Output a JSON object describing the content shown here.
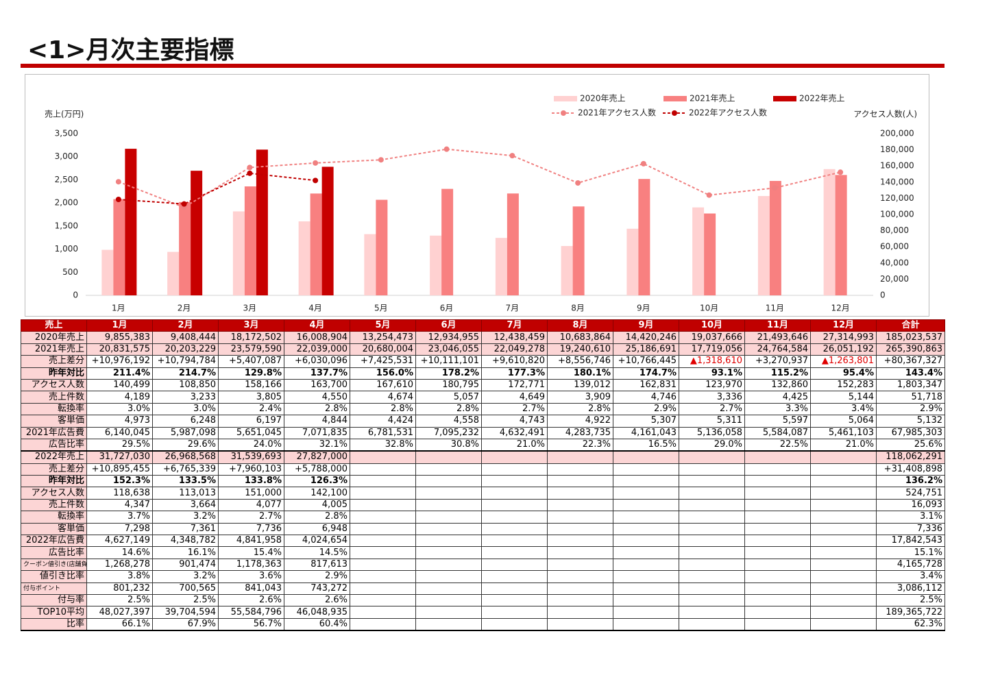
{
  "header": {
    "title": "<1>月次主要指標"
  },
  "chart_data": {
    "type": "bar",
    "y_label": "売上(万円)",
    "y2_label": "アクセス人数(人)",
    "categories": [
      "1月",
      "2月",
      "3月",
      "4月",
      "5月",
      "6月",
      "7月",
      "8月",
      "9月",
      "10月",
      "11月",
      "12月"
    ],
    "series": [
      {
        "name": "2020年売上",
        "color": "#ffd1d1",
        "values": [
          985.5,
          940.8,
          1817.3,
          1600.9,
          1325.4,
          1293.5,
          1243.8,
          1068.4,
          1442.0,
          1903.8,
          2149.4,
          2731.5
        ]
      },
      {
        "name": "2021年売上",
        "color": "#f88080",
        "values": [
          2083.2,
          2020.3,
          2358.0,
          2203.9,
          2068.0,
          2304.6,
          2204.9,
          1924.1,
          2518.7,
          1771.9,
          2476.5,
          2605.1
        ]
      },
      {
        "name": "2022年売上",
        "color": "#c80000",
        "values": [
          3172.7,
          2696.9,
          3154.0,
          2782.7,
          null,
          null,
          null,
          null,
          null,
          null,
          null,
          null
        ]
      },
      {
        "name": "2021年アクセス人数",
        "type": "line",
        "axis": "y2",
        "color": "#f08080",
        "values": [
          140499,
          108850,
          158166,
          163700,
          167610,
          180795,
          172771,
          139012,
          162831,
          123970,
          132860,
          152283
        ]
      },
      {
        "name": "2022年アクセス人数",
        "type": "line",
        "axis": "y2",
        "color": "#c00000",
        "values": [
          118638,
          113013,
          151000,
          142100,
          null,
          null,
          null,
          null,
          null,
          null,
          null,
          null
        ]
      }
    ],
    "ylim": [
      0,
      3500
    ],
    "yticks": [
      0,
      500,
      {
        "value": 1000,
        "label": "1,000"
      },
      {
        "value": 1500,
        "label": "1,500"
      },
      {
        "value": 2000,
        "label": "2,000"
      },
      {
        "value": 2500,
        "label": "2,500"
      },
      {
        "value": 3000,
        "label": "3,000"
      },
      {
        "value": 3500,
        "label": "3,500"
      }
    ],
    "y2lim": [
      0,
      200000
    ],
    "y2ticks": [
      0,
      {
        "value": 20000,
        "label": "20,000"
      },
      {
        "value": 40000,
        "label": "40,000"
      },
      {
        "value": 60000,
        "label": "60,000"
      },
      {
        "value": 80000,
        "label": "80,000"
      },
      {
        "value": 100000,
        "label": "100,000"
      },
      {
        "value": 120000,
        "label": "120,000"
      },
      {
        "value": 140000,
        "label": "140,000"
      },
      {
        "value": 160000,
        "label": "160,000"
      },
      {
        "value": 180000,
        "label": "180,000"
      },
      {
        "value": 200000,
        "label": "200,000"
      }
    ],
    "grid": false
  },
  "table": {
    "header": [
      "売上",
      "1月",
      "2月",
      "3月",
      "4月",
      "5月",
      "6月",
      "7月",
      "8月",
      "9月",
      "10月",
      "11月",
      "12月",
      "合計"
    ],
    "rows": [
      {
        "label": "2020年売上",
        "cells": [
          "9,855,383",
          "9,408,444",
          "18,172,502",
          "16,008,904",
          "13,254,473",
          "12,934,955",
          "12,438,459",
          "10,683,864",
          "14,420,246",
          "19,037,666",
          "21,493,646",
          "27,314,993",
          "185,023,537"
        ]
      },
      {
        "label": "2021年売上",
        "cells": [
          "20,831,575",
          "20,203,229",
          "23,579,590",
          "22,039,000",
          "20,680,004",
          "23,046,055",
          "22,049,278",
          "19,240,610",
          "25,186,691",
          "17,719,056",
          "24,764,584",
          "26,051,192",
          "265,390,863"
        ]
      },
      {
        "label": "売上差分",
        "cells": [
          "+10,976,192",
          "+10,794,784",
          "+5,407,087",
          "+6,030,096",
          "+7,425,531",
          "+10,111,101",
          "+9,610,820",
          "+8,556,746",
          "+10,766,445",
          "▲1,318,610",
          "+3,270,937",
          "▲1,263,801",
          "+80,367,327"
        ]
      },
      {
        "label": "昨年対比",
        "cells": [
          "211.4%",
          "214.7%",
          "129.8%",
          "137.7%",
          "156.0%",
          "178.2%",
          "177.3%",
          "180.1%",
          "174.7%",
          "93.1%",
          "115.2%",
          "95.4%",
          "143.4%"
        ]
      },
      {
        "label": "アクセス人数",
        "cells": [
          "140,499",
          "108,850",
          "158,166",
          "163,700",
          "167,610",
          "180,795",
          "172,771",
          "139,012",
          "162,831",
          "123,970",
          "132,860",
          "152,283",
          "1,803,347"
        ]
      },
      {
        "label": "売上件数",
        "cells": [
          "4,189",
          "3,233",
          "3,805",
          "4,550",
          "4,674",
          "5,057",
          "4,649",
          "3,909",
          "4,746",
          "3,336",
          "4,425",
          "5,144",
          "51,718"
        ]
      },
      {
        "label": "転換率",
        "cells": [
          "3.0%",
          "3.0%",
          "2.4%",
          "2.8%",
          "2.8%",
          "2.8%",
          "2.7%",
          "2.8%",
          "2.9%",
          "2.7%",
          "3.3%",
          "3.4%",
          "2.9%"
        ]
      },
      {
        "label": "客単価",
        "cells": [
          "4,973",
          "6,248",
          "6,197",
          "4,844",
          "4,424",
          "4,558",
          "4,743",
          "4,922",
          "5,307",
          "5,311",
          "5,597",
          "5,064",
          "5,132"
        ]
      },
      {
        "label": "2021年広告費",
        "cells": [
          "6,140,045",
          "5,987,098",
          "5,651,045",
          "7,071,835",
          "6,781,531",
          "7,095,232",
          "4,632,491",
          "4,283,735",
          "4,161,043",
          "5,136,058",
          "5,584,087",
          "5,461,103",
          "67,985,303"
        ]
      },
      {
        "label": "広告比率",
        "cells": [
          "29.5%",
          "29.6%",
          "24.0%",
          "32.1%",
          "32.8%",
          "30.8%",
          "21.0%",
          "22.3%",
          "16.5%",
          "29.0%",
          "22.5%",
          "21.0%",
          "25.6%"
        ]
      },
      {
        "label": "2022年売上",
        "cells": [
          "31,727,030",
          "26,968,568",
          "31,539,693",
          "27,827,000",
          null,
          null,
          null,
          null,
          null,
          null,
          null,
          null,
          "118,062,291"
        ]
      },
      {
        "label": "売上差分",
        "cells": [
          "+10,895,455",
          "+6,765,339",
          "+7,960,103",
          "+5,788,000",
          null,
          null,
          null,
          null,
          null,
          null,
          null,
          null,
          "+31,408,898"
        ]
      },
      {
        "label": "昨年対比",
        "cells": [
          "152.3%",
          "133.5%",
          "133.8%",
          "126.3%",
          null,
          null,
          null,
          null,
          null,
          null,
          null,
          null,
          "136.2%"
        ]
      },
      {
        "label": "アクセス人数",
        "cells": [
          "118,638",
          "113,013",
          "151,000",
          "142,100",
          null,
          null,
          null,
          null,
          null,
          null,
          null,
          null,
          "524,751"
        ]
      },
      {
        "label": "売上件数",
        "cells": [
          "4,347",
          "3,664",
          "4,077",
          "4,005",
          null,
          null,
          null,
          null,
          null,
          null,
          null,
          null,
          "16,093"
        ]
      },
      {
        "label": "転換率",
        "cells": [
          "3.7%",
          "3.2%",
          "2.7%",
          "2.8%",
          null,
          null,
          null,
          null,
          null,
          null,
          null,
          null,
          "3.1%"
        ]
      },
      {
        "label": "客単価",
        "cells": [
          "7,298",
          "7,361",
          "7,736",
          "6,948",
          null,
          null,
          null,
          null,
          null,
          null,
          null,
          null,
          "7,336"
        ]
      },
      {
        "label": "2022年広告費",
        "cells": [
          "4,627,149",
          "4,348,782",
          "4,841,958",
          "4,024,654",
          null,
          null,
          null,
          null,
          null,
          null,
          null,
          null,
          "17,842,543"
        ]
      },
      {
        "label": "広告比率",
        "cells": [
          "14.6%",
          "16.1%",
          "15.4%",
          "14.5%",
          null,
          null,
          null,
          null,
          null,
          null,
          null,
          null,
          "15.1%"
        ]
      },
      {
        "label": "クーポン値引き(店舗負担)",
        "cells": [
          "1,268,278",
          "901,474",
          "1,178,363",
          "817,613",
          null,
          null,
          null,
          null,
          null,
          null,
          null,
          null,
          "4,165,728"
        ]
      },
      {
        "label": "値引き比率",
        "cells": [
          "3.8%",
          "3.2%",
          "3.6%",
          "2.9%",
          null,
          null,
          null,
          null,
          null,
          null,
          null,
          null,
          "3.4%"
        ]
      },
      {
        "label": "付与ポイント",
        "cells": [
          "801,232",
          "700,565",
          "841,043",
          "743,272",
          null,
          null,
          null,
          null,
          null,
          null,
          null,
          null,
          "3,086,112"
        ]
      },
      {
        "label": "付与率",
        "cells": [
          "2.5%",
          "2.5%",
          "2.6%",
          "2.6%",
          null,
          null,
          null,
          null,
          null,
          null,
          null,
          null,
          "2.5%"
        ]
      },
      {
        "label": "TOP10平均",
        "cells": [
          "48,027,397",
          "39,704,594",
          "55,584,796",
          "46,048,935",
          null,
          null,
          null,
          null,
          null,
          null,
          null,
          null,
          "189,365,722"
        ]
      },
      {
        "label": "比率",
        "cells": [
          "66.1%",
          "67.9%",
          "56.7%",
          "60.4%",
          null,
          null,
          null,
          null,
          null,
          null,
          null,
          null,
          "62.3%"
        ]
      }
    ]
  }
}
